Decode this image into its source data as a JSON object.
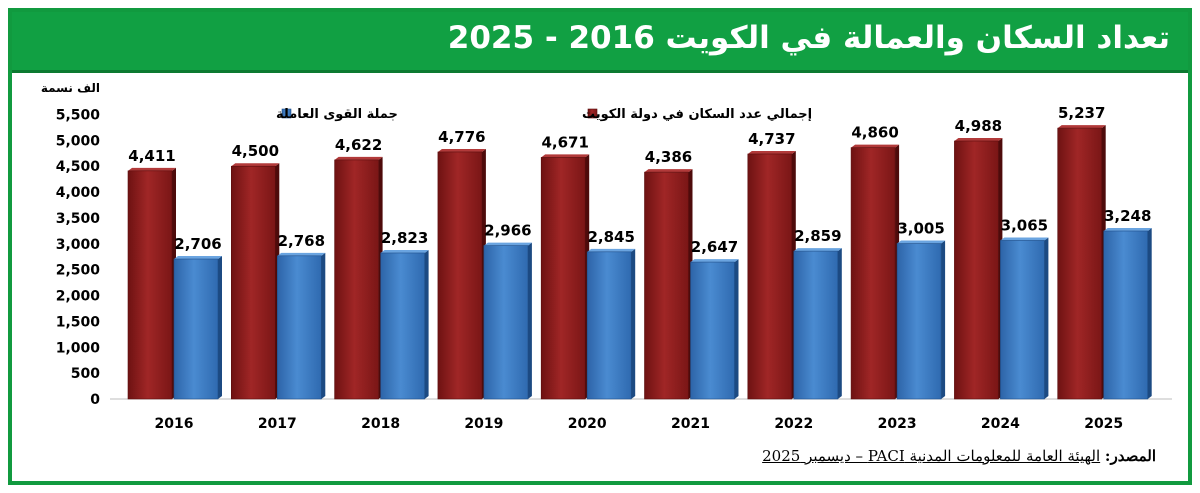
{
  "title": "تعداد السكان والعمالة في الكويت 2016 - 2025",
  "source": {
    "label": "المصدر:",
    "text": "الهيئة العامة للمعلومات المدنية PACI – ديسمبر 2025"
  },
  "colors": {
    "frame": "#119a3f",
    "title_bg": "#11a043",
    "population": "#8f1e1e",
    "workforce": "#3f7fc6"
  },
  "chart_data": {
    "type": "bar",
    "unit_label": "الف نسمة",
    "categories": [
      "2016",
      "2017",
      "2018",
      "2019",
      "2020",
      "2021",
      "2022",
      "2023",
      "2024",
      "2025"
    ],
    "series": [
      {
        "name": "إجمالي عدد السكان في دولة الكويت",
        "color": "#8f1e1e",
        "values": [
          4411,
          4500,
          4622,
          4776,
          4671,
          4386,
          4737,
          4860,
          4988,
          5237
        ]
      },
      {
        "name": "جملة القوى العاملة",
        "color": "#3f7fc6",
        "values": [
          2706,
          2768,
          2823,
          2966,
          2845,
          2647,
          2859,
          3005,
          3065,
          3248
        ]
      }
    ],
    "y_ticks": [
      0,
      500,
      1000,
      1500,
      2000,
      2500,
      3000,
      3500,
      4000,
      4500,
      5000,
      5500
    ],
    "ylim": [
      0,
      5500
    ],
    "legend_position": "top",
    "grid": false
  }
}
